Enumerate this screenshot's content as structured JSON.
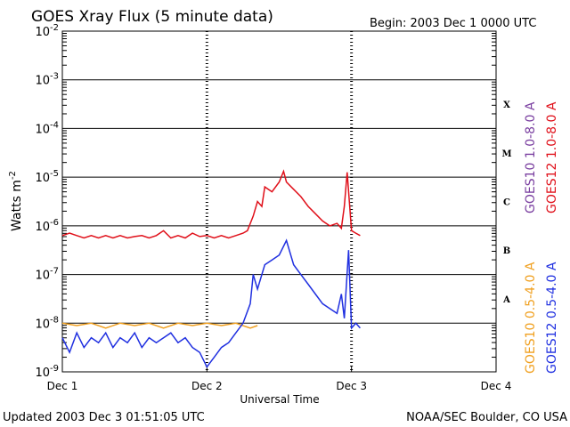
{
  "chart_data": {
    "type": "line",
    "title": "GOES Xray Flux (5 minute data)",
    "begin_label": "Begin:  2003 Dec 1 0000 UTC",
    "xlabel": "Universal Time",
    "ylabel": "Watts m",
    "ylabel_sup": "-2",
    "xlim_days": [
      0,
      3
    ],
    "ylim_log10": [
      -9,
      -2
    ],
    "x_ticks": [
      {
        "day": 0,
        "label": "Dec 1"
      },
      {
        "day": 1,
        "label": "Dec 2"
      },
      {
        "day": 2,
        "label": "Dec 3"
      },
      {
        "day": 3,
        "label": "Dec 4"
      }
    ],
    "y_ticks": [
      {
        "exp": -2,
        "base": "10",
        "sup": "-2"
      },
      {
        "exp": -3,
        "base": "10",
        "sup": "-3"
      },
      {
        "exp": -4,
        "base": "10",
        "sup": "-4"
      },
      {
        "exp": -5,
        "base": "10",
        "sup": "-5"
      },
      {
        "exp": -6,
        "base": "10",
        "sup": "-6"
      },
      {
        "exp": -7,
        "base": "10",
        "sup": "-7"
      },
      {
        "exp": -8,
        "base": "10",
        "sup": "-8"
      },
      {
        "exp": -9,
        "base": "10",
        "sup": "-9"
      }
    ],
    "flare_classes": [
      {
        "label": "X",
        "exp": -3.5
      },
      {
        "label": "M",
        "exp": -4.5
      },
      {
        "label": "C",
        "exp": -5.5
      },
      {
        "label": "B",
        "exp": -6.5
      },
      {
        "label": "A",
        "exp": -7.5
      }
    ],
    "legend": [
      {
        "label": "GOES10 1.0-8.0 A",
        "color": "#7a3fa0"
      },
      {
        "label": "GOES12 1.0-8.0 A",
        "color": "#e0101a"
      },
      {
        "label": "GOES10 0.5-4.0 A",
        "color": "#f0a020"
      },
      {
        "label": "GOES12 0.5-4.0 A",
        "color": "#2030e0"
      }
    ],
    "series": [
      {
        "name": "GOES12 1.0-8.0 A",
        "color": "#e0101a",
        "x": [
          0,
          0.05,
          0.1,
          0.15,
          0.2,
          0.25,
          0.3,
          0.35,
          0.4,
          0.45,
          0.5,
          0.55,
          0.6,
          0.65,
          0.7,
          0.75,
          0.8,
          0.85,
          0.9,
          0.95,
          1.0,
          1.05,
          1.1,
          1.15,
          1.2,
          1.25,
          1.28,
          1.32,
          1.35,
          1.38,
          1.4,
          1.45,
          1.5,
          1.53,
          1.55,
          1.6,
          1.65,
          1.7,
          1.75,
          1.8,
          1.85,
          1.9,
          1.93,
          1.95,
          1.97,
          2.0,
          2.03,
          2.06
        ],
        "y": [
          -6.2,
          -6.15,
          -6.2,
          -6.25,
          -6.2,
          -6.25,
          -6.2,
          -6.25,
          -6.2,
          -6.25,
          -6.22,
          -6.2,
          -6.25,
          -6.2,
          -6.1,
          -6.25,
          -6.2,
          -6.25,
          -6.15,
          -6.22,
          -6.2,
          -6.25,
          -6.2,
          -6.25,
          -6.2,
          -6.15,
          -6.1,
          -5.8,
          -5.5,
          -5.6,
          -5.2,
          -5.3,
          -5.1,
          -4.88,
          -5.1,
          -5.25,
          -5.4,
          -5.6,
          -5.75,
          -5.9,
          -6.0,
          -5.95,
          -6.05,
          -5.6,
          -4.9,
          -6.1,
          -6.15,
          -6.2
        ]
      },
      {
        "name": "GOES10 0.5-4.0 A",
        "color": "#f0a020",
        "x": [
          0,
          0.1,
          0.2,
          0.3,
          0.4,
          0.5,
          0.6,
          0.7,
          0.8,
          0.9,
          1.0,
          1.1,
          1.2,
          1.3,
          1.35
        ],
        "y": [
          -8.0,
          -8.05,
          -8.0,
          -8.1,
          -8.0,
          -8.05,
          -8.0,
          -8.1,
          -8.0,
          -8.05,
          -8.0,
          -8.05,
          -8.0,
          -8.1,
          -8.05
        ]
      },
      {
        "name": "GOES12 0.5-4.0 A",
        "color": "#2030e0",
        "x": [
          0,
          0.05,
          0.1,
          0.15,
          0.2,
          0.25,
          0.3,
          0.35,
          0.4,
          0.45,
          0.5,
          0.55,
          0.6,
          0.65,
          0.7,
          0.75,
          0.8,
          0.85,
          0.9,
          0.95,
          1.0,
          1.05,
          1.1,
          1.15,
          1.2,
          1.25,
          1.3,
          1.32,
          1.35,
          1.4,
          1.45,
          1.5,
          1.55,
          1.6,
          1.65,
          1.7,
          1.75,
          1.8,
          1.85,
          1.9,
          1.93,
          1.95,
          1.98,
          2.0,
          2.03,
          2.06
        ],
        "y": [
          -8.3,
          -8.6,
          -8.2,
          -8.5,
          -8.3,
          -8.4,
          -8.2,
          -8.5,
          -8.3,
          -8.4,
          -8.2,
          -8.5,
          -8.3,
          -8.4,
          -8.3,
          -8.2,
          -8.4,
          -8.3,
          -8.5,
          -8.6,
          -8.9,
          -8.7,
          -8.5,
          -8.4,
          -8.2,
          -8.0,
          -7.6,
          -7.0,
          -7.3,
          -6.8,
          -6.7,
          -6.6,
          -6.3,
          -6.8,
          -7.0,
          -7.2,
          -7.4,
          -7.6,
          -7.7,
          -7.8,
          -7.4,
          -7.9,
          -6.5,
          -8.1,
          -8.0,
          -8.1
        ]
      }
    ]
  },
  "footer": {
    "updated": "Updated 2003 Dec  3 01:51:05 UTC",
    "source": "NOAA/SEC Boulder, CO USA"
  }
}
